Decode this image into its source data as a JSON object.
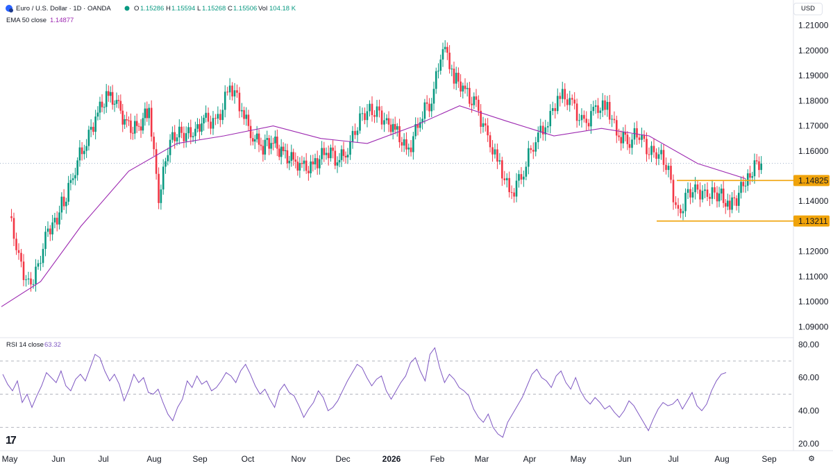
{
  "header": {
    "symbol": "Euro / U.S. Dollar · 1D · OANDA",
    "open_label": "O",
    "open": "1.15286",
    "high_label": "H",
    "high": "1.15594",
    "low_label": "L",
    "low": "1.15268",
    "close_label": "C",
    "close": "1.15506",
    "vol_label": "Vol",
    "vol": "104.18 K",
    "ema_label": "EMA 50 close",
    "ema_value": "1.14877",
    "currency": "USD"
  },
  "rsi_header": {
    "label": "RSI 14 close",
    "value": "63.32"
  },
  "colors": {
    "up": "#089981",
    "down": "#f23645",
    "ema": "#9c27b0",
    "rsi": "#7e57c2",
    "level": "#f0a30a",
    "grid": "#e0e3eb",
    "text": "#131722"
  },
  "icons": {
    "settings": "gear-icon",
    "logo": "tradingview-logo"
  },
  "chart_data": [
    {
      "type": "candlestick",
      "title": "Euro / U.S. Dollar · 1D · OANDA",
      "x_ticks": [
        "May",
        "Jun",
        "Jul",
        "Aug",
        "Sep",
        "Oct",
        "Nov",
        "Dec",
        "2026",
        "Feb",
        "Mar",
        "Apr",
        "May",
        "Jun",
        "Jul",
        "Aug",
        "Sep"
      ],
      "y_ticks": [
        "1.09000",
        "1.10000",
        "1.11000",
        "1.12000",
        "1.13000",
        "1.14000",
        "1.15000",
        "1.16000",
        "1.17000",
        "1.18000",
        "1.19000",
        "1.20000",
        "1.21000"
      ],
      "ylim": [
        1.0865,
        1.2135
      ],
      "current_price": 1.15506,
      "levels": [
        {
          "label": "1.14825",
          "value": 1.14825
        },
        {
          "label": "1.13211",
          "value": 1.13211
        }
      ],
      "close_path": [
        [
          "May",
          1.134
        ],
        [
          "May",
          1.116
        ],
        [
          "May",
          1.108
        ],
        [
          "May",
          1.113
        ],
        [
          "May",
          1.127
        ],
        [
          "Jun",
          1.141
        ],
        [
          "Jun",
          1.153
        ],
        [
          "Jun",
          1.163
        ],
        [
          "Jun",
          1.178
        ],
        [
          "Jul",
          1.181
        ],
        [
          "Jul",
          1.176
        ],
        [
          "Jul",
          1.171
        ],
        [
          "Jul",
          1.168
        ],
        [
          "Jul",
          1.176
        ],
        [
          "Aug",
          1.143
        ],
        [
          "Aug",
          1.161
        ],
        [
          "Aug",
          1.166
        ],
        [
          "Aug",
          1.169
        ],
        [
          "Aug",
          1.167
        ],
        [
          "Sep",
          1.171
        ],
        [
          "Sep",
          1.174
        ],
        [
          "Sep",
          1.185
        ],
        [
          "Sep",
          1.176
        ],
        [
          "Oct",
          1.168
        ],
        [
          "Oct",
          1.161
        ],
        [
          "Oct",
          1.163
        ],
        [
          "Oct",
          1.161
        ],
        [
          "Oct",
          1.154
        ],
        [
          "Nov",
          1.152
        ],
        [
          "Nov",
          1.157
        ],
        [
          "Nov",
          1.159
        ],
        [
          "Nov",
          1.156
        ],
        [
          "Dec",
          1.163
        ],
        [
          "Dec",
          1.17
        ],
        [
          "Dec",
          1.175
        ],
        [
          "Dec",
          1.178
        ],
        [
          "Dec",
          1.17
        ],
        [
          "2026",
          1.166
        ],
        [
          "2026",
          1.162
        ],
        [
          "2026",
          1.172
        ],
        [
          "2026",
          1.18
        ],
        [
          "Feb",
          1.205
        ],
        [
          "Feb",
          1.188
        ],
        [
          "Feb",
          1.183
        ],
        [
          "Feb",
          1.18
        ],
        [
          "Mar",
          1.163
        ],
        [
          "Mar",
          1.153
        ],
        [
          "Mar",
          1.145
        ],
        [
          "Mar",
          1.151
        ],
        [
          "Apr",
          1.165
        ],
        [
          "Apr",
          1.174
        ],
        [
          "Apr",
          1.181
        ],
        [
          "Apr",
          1.178
        ],
        [
          "May",
          1.172
        ],
        [
          "May",
          1.175
        ],
        [
          "May",
          1.177
        ],
        [
          "May",
          1.168
        ],
        [
          "Jun",
          1.163
        ],
        [
          "Jun",
          1.166
        ],
        [
          "Jun",
          1.162
        ],
        [
          "Jun",
          1.158
        ],
        [
          "Jun",
          1.151
        ],
        [
          "Jul",
          1.136
        ],
        [
          "Jul",
          1.142
        ],
        [
          "Jul",
          1.143
        ],
        [
          "Jul",
          1.145
        ],
        [
          "Jul",
          1.142
        ],
        [
          "Aug",
          1.138
        ],
        [
          "Aug",
          1.149
        ],
        [
          "Aug",
          1.155
        ]
      ],
      "ema50_path": [
        [
          "May",
          1.098
        ],
        [
          "May",
          1.108
        ],
        [
          "Jun",
          1.13
        ],
        [
          "Jul",
          1.152
        ],
        [
          "Aug",
          1.163
        ],
        [
          "Sep",
          1.166
        ],
        [
          "Oct",
          1.17
        ],
        [
          "Nov",
          1.165
        ],
        [
          "Dec",
          1.163
        ],
        [
          "2026",
          1.17
        ],
        [
          "Feb",
          1.178
        ],
        [
          "Mar",
          1.172
        ],
        [
          "Apr",
          1.166
        ],
        [
          "May",
          1.169
        ],
        [
          "Jun",
          1.166
        ],
        [
          "Jul",
          1.155
        ],
        [
          "Aug",
          1.149
        ]
      ]
    },
    {
      "type": "line",
      "title": "RSI 14 close",
      "y_ticks": [
        "20.00",
        "40.00",
        "60.00",
        "80.00"
      ],
      "ylim": [
        18,
        82
      ],
      "bands": [
        70,
        50,
        30
      ],
      "values": [
        62,
        56,
        52,
        58,
        45,
        50,
        42,
        49,
        55,
        63,
        60,
        57,
        64,
        55,
        52,
        59,
        62,
        58,
        66,
        74,
        72,
        64,
        58,
        62,
        56,
        46,
        53,
        62,
        57,
        60,
        51,
        50,
        53,
        45,
        38,
        34,
        42,
        47,
        58,
        54,
        61,
        56,
        58,
        52,
        54,
        58,
        63,
        61,
        57,
        64,
        68,
        62,
        55,
        50,
        53,
        47,
        42,
        52,
        56,
        51,
        49,
        43,
        36,
        41,
        45,
        52,
        48,
        40,
        42,
        46,
        52,
        58,
        63,
        68,
        66,
        60,
        55,
        59,
        61,
        52,
        47,
        52,
        57,
        61,
        69,
        72,
        64,
        58,
        74,
        78,
        66,
        57,
        62,
        59,
        54,
        52,
        49,
        41,
        36,
        33,
        38,
        30,
        26,
        24,
        33,
        38,
        43,
        48,
        55,
        62,
        65,
        60,
        58,
        54,
        61,
        64,
        57,
        53,
        60,
        52,
        47,
        44,
        48,
        45,
        41,
        43,
        39,
        36,
        40,
        46,
        43,
        38,
        33,
        28,
        35,
        41,
        45,
        43,
        44,
        47,
        41,
        46,
        51,
        43,
        40,
        44,
        52,
        58,
        62,
        63
      ]
    }
  ]
}
